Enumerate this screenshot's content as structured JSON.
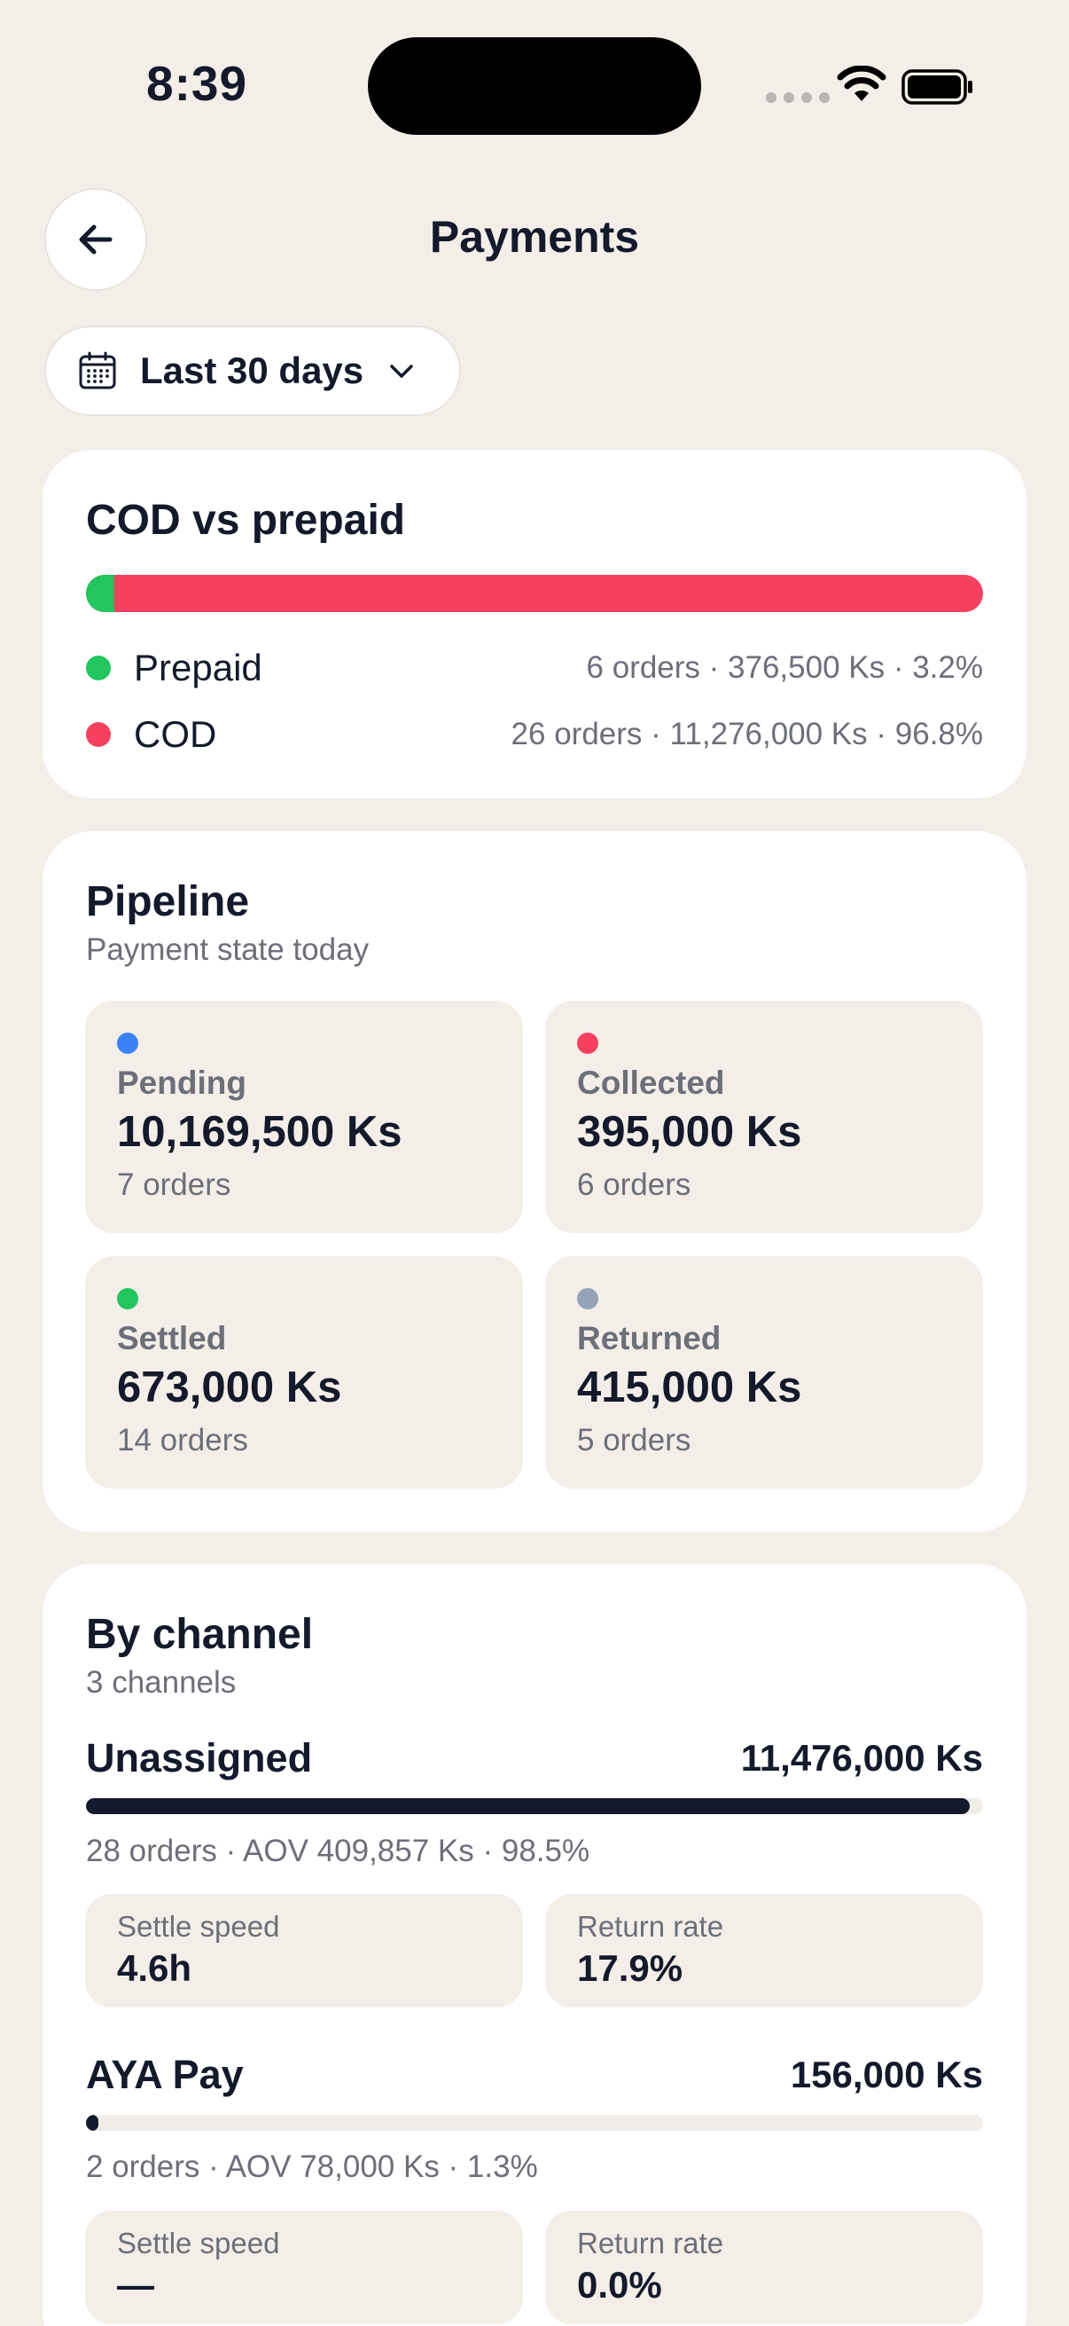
{
  "status_bar": {
    "time": "8:39"
  },
  "header": {
    "title": "Payments"
  },
  "date_range": {
    "label": "Last 30 days"
  },
  "cod_vs_prepaid": {
    "title": "COD vs prepaid",
    "prepaid_share": 0.032,
    "rows": [
      {
        "name": "Prepaid",
        "stats": "6 orders · 376,500 Ks · 3.2%",
        "color": "#22c55e"
      },
      {
        "name": "COD",
        "stats": "26 orders · 11,276,000 Ks · 96.8%",
        "color": "#f5405f"
      }
    ]
  },
  "pipeline": {
    "title": "Pipeline",
    "subtitle": "Payment state today",
    "tiles": [
      {
        "label": "Pending",
        "value": "10,169,500 Ks",
        "sub": "7 orders",
        "color": "#3b82f6"
      },
      {
        "label": "Collected",
        "value": "395,000 Ks",
        "sub": "6 orders",
        "color": "#f5405f"
      },
      {
        "label": "Settled",
        "value": "673,000 Ks",
        "sub": "14 orders",
        "color": "#22c55e"
      },
      {
        "label": "Returned",
        "value": "415,000 Ks",
        "sub": "5 orders",
        "color": "#94a3b8"
      }
    ]
  },
  "by_channel": {
    "title": "By channel",
    "subtitle": "3 channels",
    "channels": [
      {
        "name": "Unassigned",
        "amount": "11,476,000 Ks",
        "share": 0.985,
        "stats": "28 orders · AOV 409,857 Ks · 98.5%",
        "settle_label": "Settle speed",
        "settle_value": "4.6h",
        "return_label": "Return rate",
        "return_value": "17.9%"
      },
      {
        "name": "AYA Pay",
        "amount": "156,000 Ks",
        "share": 0.013,
        "stats": "2 orders · AOV 78,000 Ks · 1.3%",
        "settle_label": "Settle speed",
        "settle_value": "—",
        "return_label": "Return rate",
        "return_value": "0.0%"
      }
    ]
  }
}
